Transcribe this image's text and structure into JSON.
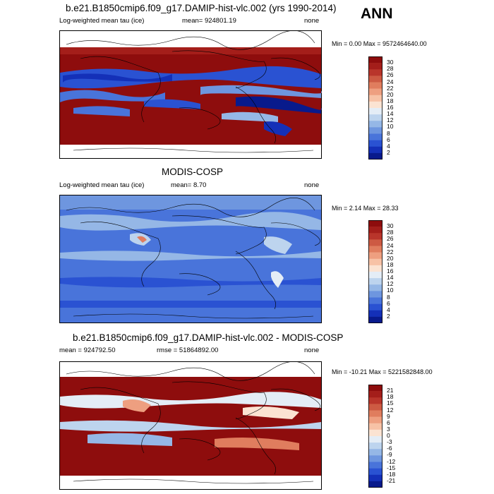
{
  "season": "ANN",
  "panels": [
    {
      "title": "b.e21.B1850cmip6.f09_g17.DAMIP-hist-vlc.002 (yrs 1990-2014)",
      "left_label": "Log-weighted mean tau (ice)",
      "center_label": "mean= 924801.19",
      "right_label": "none",
      "minmax": "Min =   0.00 Max = 9572464640.00",
      "colorbar_labels": [
        "30",
        "28",
        "26",
        "24",
        "22",
        "20",
        "18",
        "16",
        "14",
        "12",
        "10",
        "8",
        "6",
        "4",
        "2"
      ],
      "colorbar_colors": [
        "#8e0d0d",
        "#a41e1a",
        "#b9352b",
        "#cd5a43",
        "#e07d5e",
        "#ee9f80",
        "#f7c2a6",
        "#fbe3d2",
        "#e4edf6",
        "#bdd4ee",
        "#95b7e6",
        "#6e96df",
        "#4974da",
        "#2a52d2",
        "#1430b8",
        "#081a8c"
      ],
      "kind": "model"
    },
    {
      "title": "MODIS-COSP",
      "left_label": "Log-weighted mean tau (ice)",
      "center_label": "mean=   8.70",
      "right_label": "none",
      "minmax": "Min =  2.14 Max =  28.33",
      "colorbar_labels": [
        "30",
        "28",
        "26",
        "24",
        "22",
        "20",
        "18",
        "16",
        "14",
        "12",
        "10",
        "8",
        "6",
        "4",
        "2"
      ],
      "colorbar_colors": [
        "#8e0d0d",
        "#a41e1a",
        "#b9352b",
        "#cd5a43",
        "#e07d5e",
        "#ee9f80",
        "#f7c2a6",
        "#fbe3d2",
        "#e4edf6",
        "#bdd4ee",
        "#95b7e6",
        "#6e96df",
        "#4974da",
        "#2a52d2",
        "#1430b8",
        "#081a8c"
      ],
      "kind": "obs"
    },
    {
      "title": "b.e21.B1850cmip6.f09_g17.DAMIP-hist-vlc.002 - MODIS-COSP",
      "left_label": "mean = 924792.50",
      "center_label": "rmse = 51864892.00",
      "right_label": "none",
      "minmax": "Min = -10.21 Max = 5221582848.00",
      "colorbar_labels": [
        "21",
        "18",
        "15",
        "12",
        "9",
        "6",
        "3",
        "0",
        "-3",
        "-6",
        "-9",
        "-12",
        "-15",
        "-18",
        "-21"
      ],
      "colorbar_colors": [
        "#8e0d0d",
        "#a41e1a",
        "#b9352b",
        "#cd5a43",
        "#e07d5e",
        "#ee9f80",
        "#f7c2a6",
        "#fbe3d2",
        "#e4edf6",
        "#bdd4ee",
        "#95b7e6",
        "#6e96df",
        "#4974da",
        "#2a52d2",
        "#1430b8",
        "#081a8c"
      ],
      "kind": "diff"
    }
  ]
}
